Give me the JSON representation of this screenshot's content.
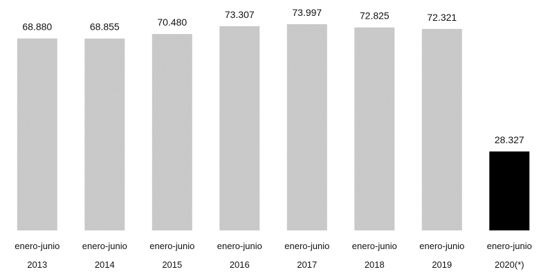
{
  "chart_data": {
    "type": "bar",
    "categories": [
      [
        "enero-junio",
        "2013"
      ],
      [
        "enero-junio",
        "2014"
      ],
      [
        "enero-junio",
        "2015"
      ],
      [
        "enero-junio",
        "2016"
      ],
      [
        "enero-junio",
        "2017"
      ],
      [
        "enero-junio",
        "2018"
      ],
      [
        "enero-junio",
        "2019"
      ],
      [
        "enero-junio",
        "2020(*)"
      ]
    ],
    "values": [
      68880,
      68855,
      70480,
      73307,
      73997,
      72825,
      72321,
      28327
    ],
    "value_labels": [
      "68.880",
      "68.855",
      "70.480",
      "73.307",
      "73.997",
      "72.825",
      "72.321",
      "28.327"
    ],
    "title": "",
    "xlabel": "",
    "ylabel": "",
    "ylim": [
      0,
      74000
    ],
    "grid": false,
    "legend": "none",
    "colors": {
      "historic_bars": "#d2d2d2",
      "highlight_bar": "#000000",
      "text": "#111111"
    },
    "highlight_index": 7
  }
}
